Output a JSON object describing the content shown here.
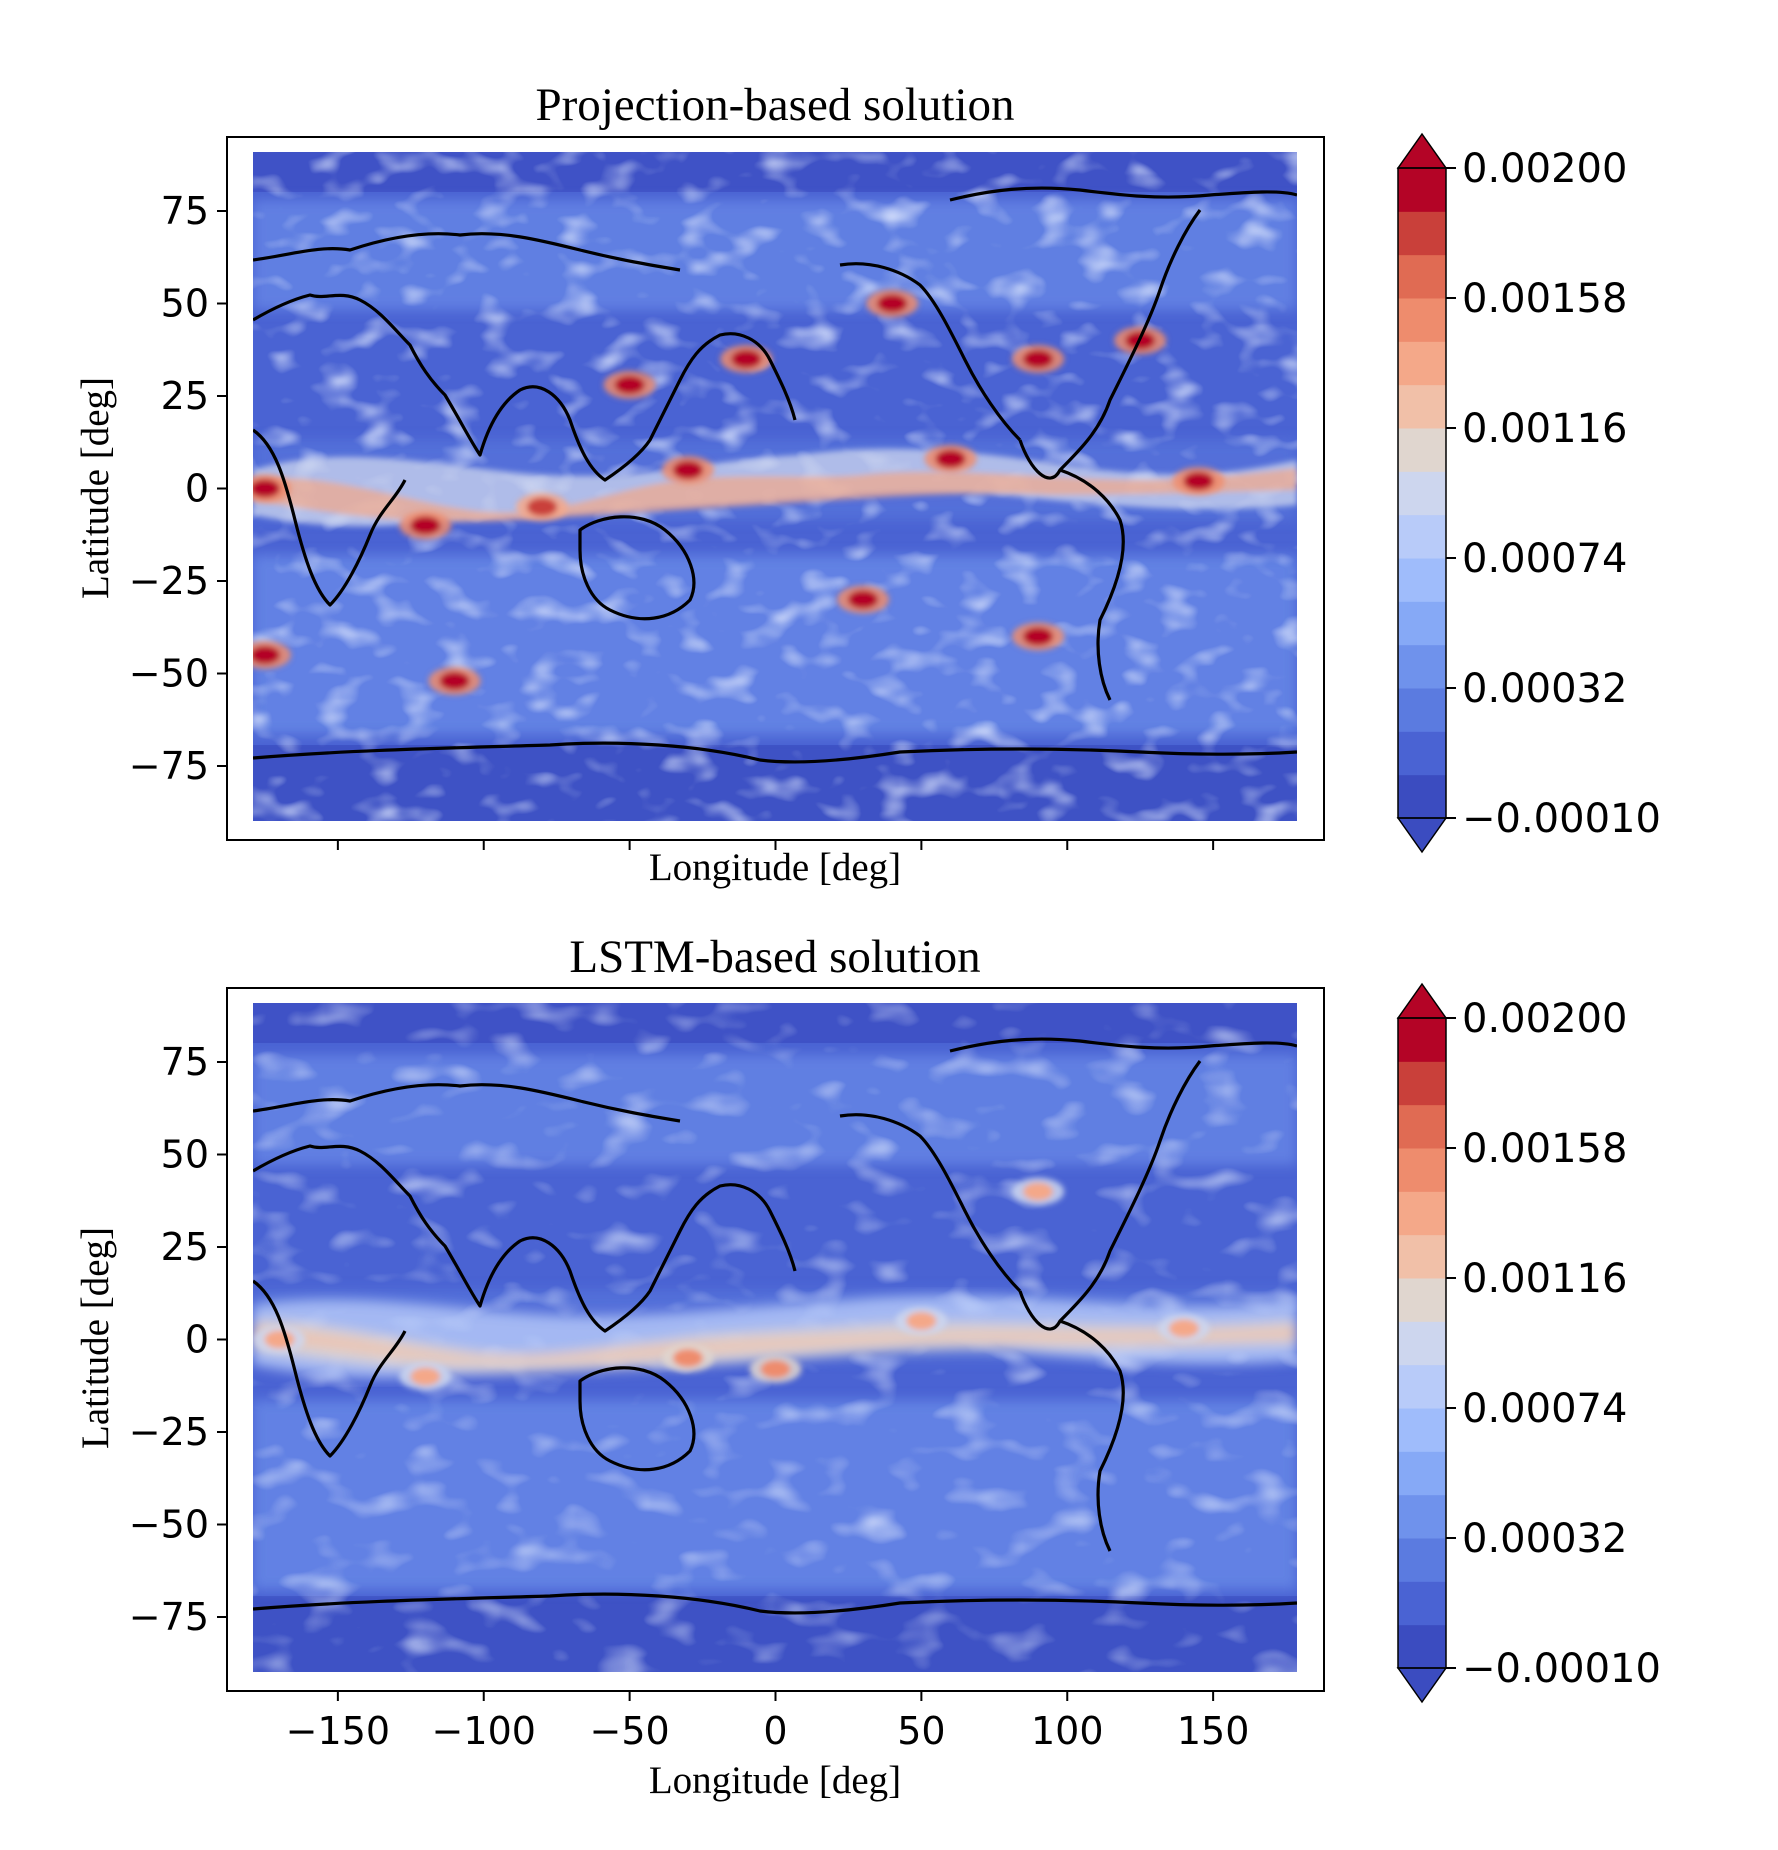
{
  "figure": {
    "panels": [
      {
        "title": "Projection-based solution",
        "xlabel": "Longitude [deg]",
        "ylabel": "Latitude [deg]",
        "show_x_tick_labels": false
      },
      {
        "title": "LSTM-based solution",
        "xlabel": "Longitude [deg]",
        "ylabel": "Latitude [deg]",
        "show_x_tick_labels": true
      }
    ],
    "colormap": "coolwarm",
    "colorbar_levels": [
      "#3b4cc0",
      "#4a63d3",
      "#5b7be0",
      "#6f92ec",
      "#86a9f6",
      "#9fbcfb",
      "#b8cbf9",
      "#cdd6ee",
      "#e0d6cf",
      "#f1c0a8",
      "#f4a889",
      "#ee8c6d",
      "#e06b53",
      "#c9403a",
      "#b40426"
    ],
    "colorbar_ticks": [
      "0.00200",
      "0.00158",
      "0.00116",
      "0.00074",
      "0.00032",
      "−0.00010"
    ],
    "x_ticks": [
      "−150",
      "−100",
      "−50",
      "0",
      "50",
      "100",
      "150"
    ],
    "y_ticks": [
      "75",
      "50",
      "25",
      "0",
      "−25",
      "−50",
      "−75"
    ]
  },
  "chart_data": [
    {
      "type": "heatmap",
      "title": "Projection-based solution",
      "xlabel": "Longitude [deg]",
      "ylabel": "Latitude [deg]",
      "xlim": [
        -188,
        188
      ],
      "ylim": [
        -95,
        95
      ],
      "x_ticks": [
        -150,
        -100,
        -50,
        0,
        50,
        100,
        150
      ],
      "y_ticks": [
        75,
        50,
        25,
        0,
        -25,
        -50,
        -75
      ],
      "colorbar": {
        "min": -0.0001,
        "max": 0.002,
        "ticks": [
          0.002,
          0.00158,
          0.00116,
          0.00074,
          0.00032,
          -0.0001
        ],
        "extend": "both"
      },
      "background_value": 0.0003,
      "hotspots": [
        {
          "lon": -175,
          "lat": 0,
          "value": 0.002
        },
        {
          "lon": -120,
          "lat": -10,
          "value": 0.002
        },
        {
          "lon": -80,
          "lat": -5,
          "value": 0.0018
        },
        {
          "lon": -50,
          "lat": 28,
          "value": 0.0019
        },
        {
          "lon": -10,
          "lat": 35,
          "value": 0.002
        },
        {
          "lon": -30,
          "lat": 5,
          "value": 0.002
        },
        {
          "lon": 40,
          "lat": 50,
          "value": 0.002
        },
        {
          "lon": 90,
          "lat": 35,
          "value": 0.002
        },
        {
          "lon": 125,
          "lat": 40,
          "value": 0.002
        },
        {
          "lon": 60,
          "lat": 8,
          "value": 0.002
        },
        {
          "lon": 145,
          "lat": 2,
          "value": 0.002
        },
        {
          "lon": 30,
          "lat": -30,
          "value": 0.002
        },
        {
          "lon": 90,
          "lat": -40,
          "value": 0.002
        },
        {
          "lon": -110,
          "lat": -52,
          "value": 0.002
        },
        {
          "lon": -175,
          "lat": -45,
          "value": 0.002
        }
      ]
    },
    {
      "type": "heatmap",
      "title": "LSTM-based solution",
      "xlabel": "Longitude [deg]",
      "ylabel": "Latitude [deg]",
      "xlim": [
        -188,
        188
      ],
      "ylim": [
        -95,
        95
      ],
      "x_ticks": [
        -150,
        -100,
        -50,
        0,
        50,
        100,
        150
      ],
      "y_ticks": [
        75,
        50,
        25,
        0,
        -25,
        -50,
        -75
      ],
      "colorbar": {
        "min": -0.0001,
        "max": 0.002,
        "ticks": [
          0.002,
          0.00158,
          0.00116,
          0.00074,
          0.00032,
          -0.0001
        ],
        "extend": "both"
      },
      "background_value": 0.00035,
      "hotspots": [
        {
          "lon": -170,
          "lat": 0,
          "value": 0.0014
        },
        {
          "lon": -120,
          "lat": -10,
          "value": 0.0014
        },
        {
          "lon": -30,
          "lat": -5,
          "value": 0.0015
        },
        {
          "lon": 50,
          "lat": 5,
          "value": 0.0013
        },
        {
          "lon": 140,
          "lat": 3,
          "value": 0.0014
        },
        {
          "lon": 90,
          "lat": 40,
          "value": 0.0014
        },
        {
          "lon": 0,
          "lat": -8,
          "value": 0.0015
        }
      ]
    }
  ]
}
